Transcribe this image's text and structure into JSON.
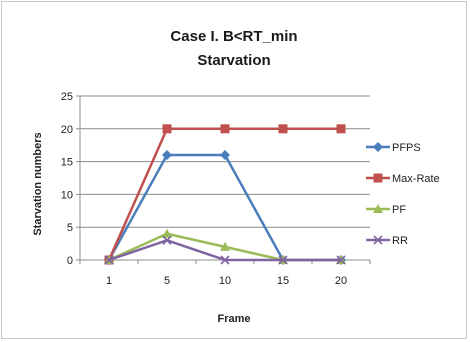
{
  "chart_data": {
    "type": "line",
    "title_line1": "Case I. B<RT_min",
    "title_line2": "Starvation",
    "xlabel": "Frame",
    "ylabel": "Starvation numbers",
    "categories": [
      "1",
      "5",
      "10",
      "15",
      "20"
    ],
    "ylim": [
      0,
      25
    ],
    "yticks": [
      0,
      5,
      10,
      15,
      20,
      25
    ],
    "grid": true,
    "legend_position": "right",
    "series": [
      {
        "name": "PFPS",
        "values": [
          0,
          16,
          16,
          0,
          0
        ],
        "color": "#4a7ebb",
        "marker": "diamond"
      },
      {
        "name": "Max-Rate",
        "values": [
          0,
          20,
          20,
          20,
          20
        ],
        "color": "#c0504d",
        "marker": "square"
      },
      {
        "name": "PF",
        "values": [
          0,
          4,
          2,
          0,
          0
        ],
        "color": "#9bbb59",
        "marker": "triangle"
      },
      {
        "name": "RR",
        "values": [
          0,
          3,
          0,
          0,
          0
        ],
        "color": "#8064a2",
        "marker": "x"
      }
    ]
  }
}
